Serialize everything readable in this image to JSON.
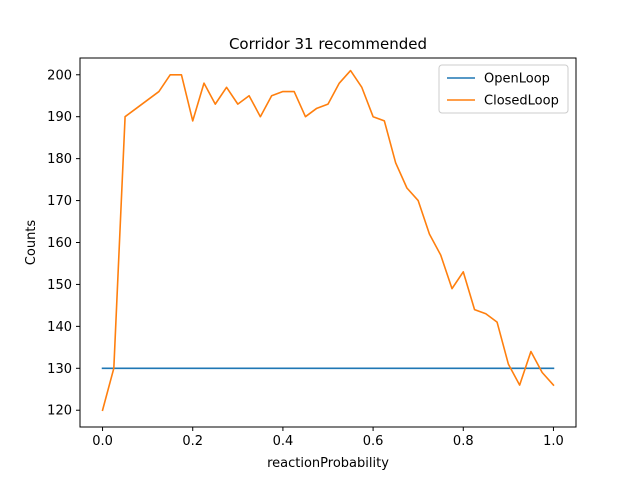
{
  "chart_data": {
    "type": "line",
    "title": "Corridor 31 recommended",
    "xlabel": "reactionProbability",
    "ylabel": "Counts",
    "xlim": [
      -0.05,
      1.05
    ],
    "ylim": [
      116,
      204
    ],
    "xticks": [
      0.0,
      0.2,
      0.4,
      0.6,
      0.8,
      1.0
    ],
    "xtick_labels": [
      "0.0",
      "0.2",
      "0.4",
      "0.6",
      "0.8",
      "1.0"
    ],
    "yticks": [
      120,
      130,
      140,
      150,
      160,
      170,
      180,
      190,
      200
    ],
    "ytick_labels": [
      "120",
      "130",
      "140",
      "150",
      "160",
      "170",
      "180",
      "190",
      "200"
    ],
    "grid": false,
    "legend_position": "top-right",
    "series": [
      {
        "name": "OpenLoop",
        "color": "#1f77b4",
        "x": [
          0.0,
          1.0
        ],
        "y": [
          130,
          130
        ]
      },
      {
        "name": "ClosedLoop",
        "color": "#ff7f0e",
        "x": [
          0.0,
          0.025,
          0.05,
          0.075,
          0.1,
          0.125,
          0.15,
          0.175,
          0.2,
          0.225,
          0.25,
          0.275,
          0.3,
          0.325,
          0.35,
          0.375,
          0.4,
          0.425,
          0.45,
          0.475,
          0.5,
          0.525,
          0.55,
          0.575,
          0.6,
          0.625,
          0.65,
          0.675,
          0.7,
          0.725,
          0.75,
          0.775,
          0.8,
          0.825,
          0.85,
          0.875,
          0.9,
          0.925,
          0.95,
          0.975,
          1.0
        ],
        "y": [
          120,
          130,
          190,
          192,
          194,
          196,
          200,
          200,
          189,
          198,
          193,
          197,
          193,
          195,
          190,
          195,
          196,
          196,
          190,
          192,
          193,
          198,
          201,
          197,
          190,
          189,
          179,
          173,
          170,
          162,
          157,
          149,
          153,
          144,
          143,
          141,
          131,
          126,
          134,
          129,
          126
        ]
      }
    ]
  }
}
